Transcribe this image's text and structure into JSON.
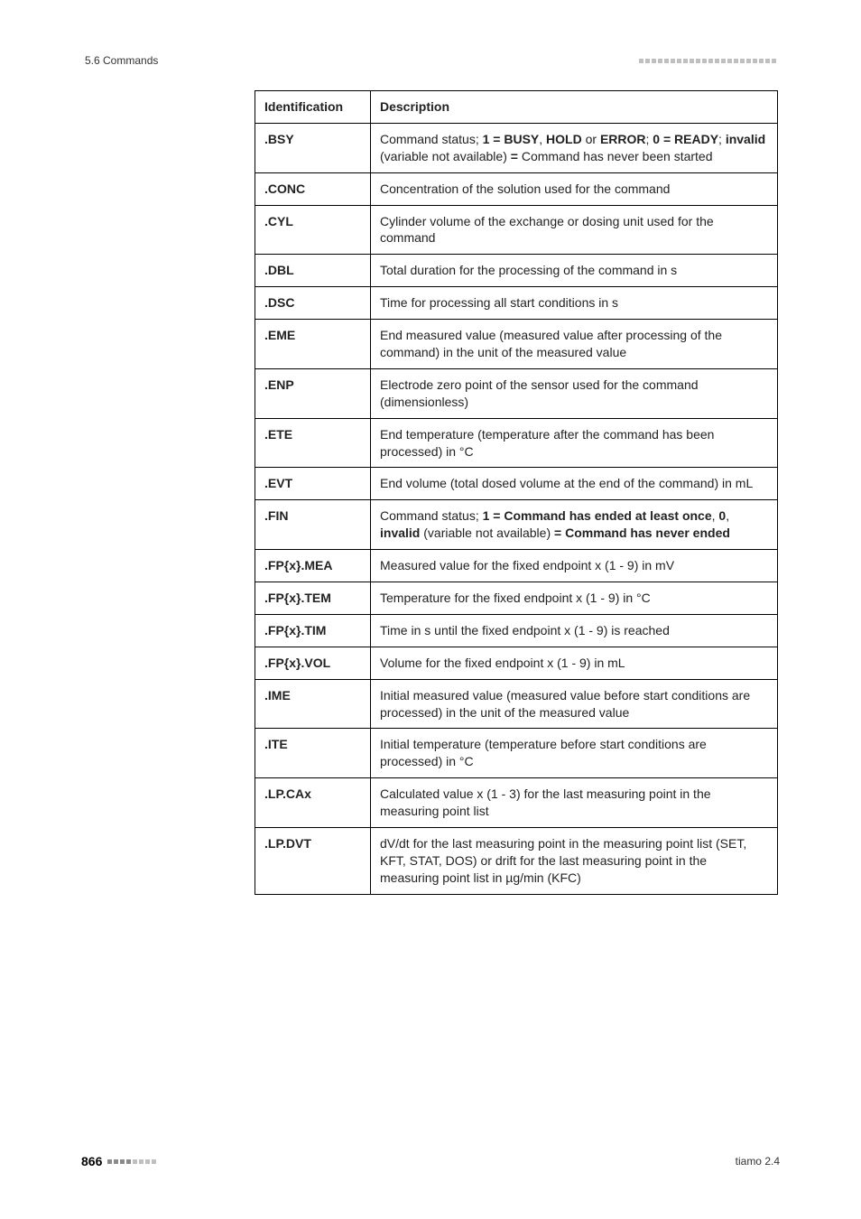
{
  "header": {
    "section": "5.6 Commands"
  },
  "columns": {
    "id": "Identification",
    "desc": "Description"
  },
  "rows": [
    {
      "id": ".BSY",
      "desc_html": "Command status; <span class='b'>1 = BUSY</span>, <span class='b'>HOLD</span> or <span class='b'>ERROR</span>; <span class='b'>0 = READY</span>; <span class='b'>invalid</span> (variable not available) <span class='b'>=</span> Command has never been started"
    },
    {
      "id": ".CONC",
      "desc_html": "Concentration of the solution used for the command"
    },
    {
      "id": ".CYL",
      "desc_html": "Cylinder volume of the exchange or dosing unit used for the command"
    },
    {
      "id": ".DBL",
      "desc_html": "Total duration for the processing of the command in s"
    },
    {
      "id": ".DSC",
      "desc_html": "Time for processing all start conditions in s"
    },
    {
      "id": ".EME",
      "desc_html": "End measured value (measured value after processing of the command) in the unit of the measured value"
    },
    {
      "id": ".ENP",
      "desc_html": "Electrode zero point of the sensor used for the command (dimensionless)"
    },
    {
      "id": ".ETE",
      "desc_html": "End temperature (temperature after the command has been processed) in °C"
    },
    {
      "id": ".EVT",
      "desc_html": "End volume (total dosed volume at the end of the command) in mL"
    },
    {
      "id": ".FIN",
      "desc_html": "Command status; <span class='b'>1 = Command has ended at least once</span>, <span class='b'>0</span>, <span class='b'>invalid</span> (variable not available) <span class='b'>=</span> <span class='b'>Command has never ended</span>"
    },
    {
      "id": ".FP{x}.MEA",
      "desc_html": "Measured value for the fixed endpoint x (1 - 9) in mV"
    },
    {
      "id": ".FP{x}.TEM",
      "desc_html": "Temperature for the fixed endpoint x (1 - 9) in °C"
    },
    {
      "id": ".FP{x}.TIM",
      "desc_html": "Time in s until the fixed endpoint x (1 - 9) is reached"
    },
    {
      "id": ".FP{x}.VOL",
      "desc_html": "Volume for the fixed endpoint x (1 - 9) in mL"
    },
    {
      "id": ".IME",
      "desc_html": "Initial measured value (measured value before start conditions are processed) in the unit of the measured value"
    },
    {
      "id": ".ITE",
      "desc_html": "Initial temperature (temperature before start conditions are processed) in °C"
    },
    {
      "id": ".LP.CAx",
      "desc_html": "Calculated value x (1 - 3) for the last measuring point in the measuring point list"
    },
    {
      "id": ".LP.DVT",
      "desc_html": "dV/dt for the last measuring point in the measuring point list (SET, KFT, STAT, DOS) or drift for the last measuring point in the measuring point list in µg/min (KFC)"
    }
  ],
  "footer": {
    "page": "866",
    "product": "tiamo 2.4"
  },
  "colors": {
    "block_light": "#bfbfbf",
    "block_dark": "#8a8a8a",
    "border": "#000000",
    "text": "#222222",
    "bg": "#ffffff"
  }
}
